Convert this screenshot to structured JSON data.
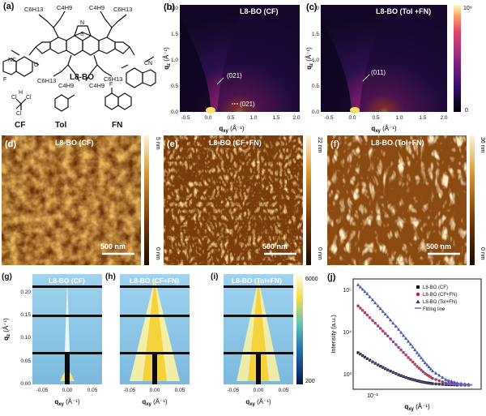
{
  "panel_a": {
    "label": "(a)",
    "molecule_name": "L8-BO",
    "groups": {
      "top_left": "C6H13",
      "top_left2": "C4H9",
      "top_right": "C6H13",
      "top_right2": "C4H9",
      "bottom_left": "C6H13",
      "bottom_left2": "C4H9",
      "bottom_right": "C4H9",
      "bottom_right2": "C6H13"
    },
    "atoms": {
      "nc": "NC",
      "cn": "CN",
      "n": "N",
      "s": "S",
      "f": "F",
      "o": "O"
    },
    "solvents": [
      {
        "name": "CF",
        "atoms": [
          "Cl",
          "H",
          "Cl",
          "Cl"
        ]
      },
      {
        "name": "Tol",
        "atoms": []
      },
      {
        "name": "FN",
        "atoms": [
          "F"
        ]
      }
    ]
  },
  "gi_panels": [
    {
      "label": "(b)",
      "title": "L8-BO (CF)",
      "ylabel": "q",
      "ysub": "z",
      "yunit": "(Å⁻¹)",
      "xlabel": "q",
      "xsub": "xy",
      "xunit": "(Å⁻¹)",
      "xticks": [
        "-0.5",
        "0.0",
        "0.5",
        "1.0",
        "1.5",
        "2.0"
      ],
      "yticks": [
        "0.0",
        "0.5",
        "1.0",
        "1.5",
        "2.0"
      ],
      "annotations": [
        "(021)",
        "(021)"
      ]
    },
    {
      "label": "(c)",
      "title": "L8-BO (Tol +FN)",
      "ylabel": "q",
      "ysub": "z",
      "yunit": "(Å⁻¹)",
      "xlabel": "q",
      "xsub": "xy",
      "xunit": "(Å⁻¹)",
      "xticks": [
        "-0.5",
        "0.0",
        "0.5",
        "1.0",
        "1.5",
        "2.0"
      ],
      "yticks": [
        "0.0",
        "0.5",
        "1.0",
        "1.5",
        "2.0"
      ],
      "annotations": [
        "(011)"
      ]
    }
  ],
  "gi_colorbar": {
    "top": "10⁹",
    "bottom": "0"
  },
  "afm_panels": [
    {
      "label": "(d)",
      "title": "L8-BO (CF)",
      "scale": "500 nm",
      "cbar_top": "5 nm",
      "cbar_bottom": "0 nm"
    },
    {
      "label": "(e)",
      "title": "L8-BO (CF+FN)",
      "scale": "500 nm",
      "cbar_top": "22 nm",
      "cbar_bottom": "0 nm"
    },
    {
      "label": "(f)",
      "title": "L8-BO (Tol+FN)",
      "scale": "500 nm",
      "cbar_top": "36 nm",
      "cbar_bottom": "0 nm"
    }
  ],
  "gisaxs_panels": [
    {
      "label": "(g)",
      "title": "L8-BO (CF)"
    },
    {
      "label": "(h)",
      "title": "L8-BO (CF+FN)"
    },
    {
      "label": "(i)",
      "title": "L8-BO (Tol+FN)"
    }
  ],
  "gisaxs_axes": {
    "ylabel": "q",
    "ysub": "z",
    "yunit": "(Å⁻¹)",
    "xlabel": "q",
    "xsub": "xy",
    "xunit": "(Å⁻¹)",
    "xticks": [
      "-0.05",
      "0.00",
      "0.05"
    ],
    "yticks": [
      "0.00",
      "0.05",
      "0.10",
      "0.15",
      "0.20"
    ],
    "cbar_top": "6000",
    "cbar_bottom": "200"
  },
  "panel_j": {
    "label": "(j)",
    "ylabel": "Intensity (a.u.)",
    "xlabel": "q",
    "xsub": "xy",
    "xunit": "(Å⁻¹)",
    "yticks": [
      "10⁵",
      "10⁴",
      "10³"
    ],
    "xtick": "10⁻¹",
    "legend": [
      "L8-BO (CF)",
      "L8-BO (CF+FN)",
      "L8-BO (Tol+FN)",
      "Fitting line"
    ]
  },
  "chart_data": {
    "type": "scatter",
    "xlabel": "qxy (Å⁻¹)",
    "ylabel": "Intensity (a.u.)",
    "x_scale": "log",
    "y_scale": "log",
    "xlim": [
      0.055,
      0.22
    ],
    "ylim": [
      800,
      200000
    ],
    "legend_position": "top-right",
    "colors": {
      "CF": "#111111",
      "CF+FN": "#c8202a",
      "Tol+FN": "#1f3b8c",
      "fit": "#6b6bd0"
    },
    "series": [
      {
        "name": "L8-BO (CF)",
        "x": [
          0.058,
          0.064,
          0.072,
          0.08,
          0.09,
          0.1,
          0.11,
          0.12,
          0.13,
          0.15,
          0.17,
          0.2
        ],
        "y": [
          5000,
          3700,
          2700,
          2100,
          1650,
          1380,
          1220,
          1120,
          1060,
          1010,
          990,
          980
        ]
      },
      {
        "name": "L8-BO (CF+FN)",
        "x": [
          0.058,
          0.064,
          0.072,
          0.08,
          0.09,
          0.1,
          0.11,
          0.12,
          0.13,
          0.15,
          0.17,
          0.2
        ],
        "y": [
          52000,
          33000,
          19000,
          11500,
          6500,
          3900,
          2500,
          1750,
          1380,
          1100,
          1020,
          990
        ]
      },
      {
        "name": "L8-BO (Tol+FN)",
        "x": [
          0.058,
          0.064,
          0.072,
          0.08,
          0.09,
          0.1,
          0.11,
          0.12,
          0.13,
          0.15,
          0.17,
          0.2
        ],
        "y": [
          150000,
          95000,
          52000,
          30000,
          16000,
          8800,
          5000,
          3000,
          2000,
          1300,
          1100,
          1000
        ]
      }
    ]
  }
}
